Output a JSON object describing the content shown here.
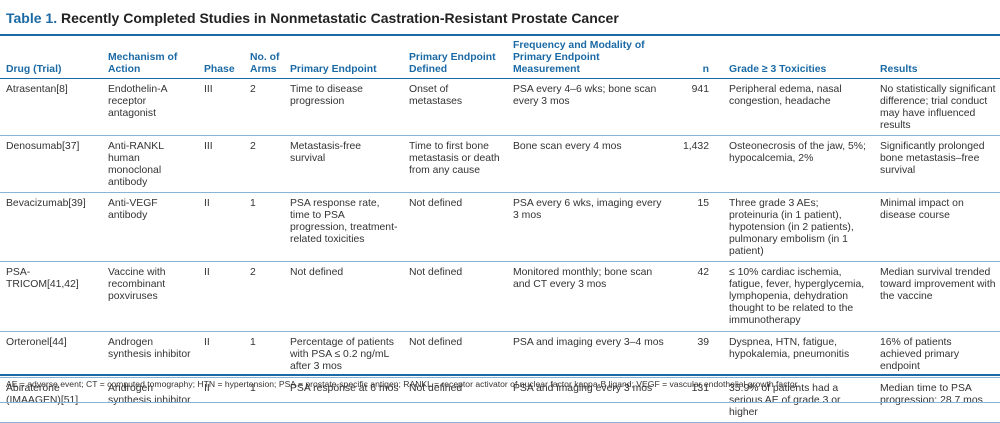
{
  "title": {
    "number": "Table 1.",
    "text": "Recently Completed Studies in Nonmetastatic Castration-Resistant Prostate Cancer"
  },
  "columns": [
    "Drug (Trial)",
    "Mechanism of Action",
    "Phase",
    "No. of Arms",
    "Primary Endpoint",
    "Primary Endpoint Defined",
    "Frequency and Modality of Primary Endpoint Measurement",
    "n",
    "Grade ≥ 3 Toxicities",
    "Results"
  ],
  "rows": [
    [
      "Atrasentan[8]",
      "Endothelin-A receptor antagonist",
      "III",
      "2",
      "Time to disease progression",
      "Onset of metastases",
      "PSA every 4–6 wks; bone scan every 3 mos",
      "941",
      "Peripheral edema, nasal congestion, headache",
      "No statistically significant difference; trial conduct may have influenced results"
    ],
    [
      "Denosumab[37]",
      "Anti-RANKL human monoclonal antibody",
      "III",
      "2",
      "Metastasis-free survival",
      "Time to first bone metastasis or death from any cause",
      "Bone scan every 4 mos",
      "1,432",
      "Osteonecrosis of the jaw, 5%; hypocalcemia, 2%",
      "Significantly prolonged bone metastasis–free survival"
    ],
    [
      "Bevacizumab[39]",
      "Anti-VEGF antibody",
      "II",
      "1",
      "PSA response rate, time to PSA progression, treatment-related toxicities",
      "Not defined",
      "PSA every 6 wks, imaging every 3 mos",
      "15",
      "Three grade 3 AEs; proteinuria (in 1 patient), hypotension (in 2 patients), pulmonary embolism (in 1 patient)",
      "Minimal impact on disease course"
    ],
    [
      "PSA-TRICOM[41,42]",
      "Vaccine with recombinant poxviruses",
      "II",
      "2",
      "Not defined",
      "Not defined",
      "Monitored monthly; bone scan and CT every 3 mos",
      "42",
      "≤ 10% cardiac ischemia, fatigue, fever, hyperglycemia, lymphopenia, dehydration thought to be related to the immunotherapy",
      "Median survival trended toward improvement with the vaccine"
    ],
    [
      "Orteronel[44]",
      "Androgen synthesis inhibitor",
      "II",
      "1",
      "Percentage of patients with PSA ≤ 0.2 ng/mL after 3 mos",
      "Not defined",
      "PSA and imaging every 3–4 mos",
      "39",
      "Dyspnea, HTN, fatigue, hypokalemia, pneumonitis",
      "16% of patients achieved primary endpoint"
    ],
    [
      "Abiraterone (IMAAGEN)[51]",
      "Androgen synthesis inhibitor",
      "II",
      "1",
      "PSA response at 6 mos",
      "Not defined",
      "PSA and imaging every 3 mos",
      "131",
      "35.9% of patients had a serious AE of grade 3 or higher",
      "Median time to PSA progression: 28.7 mos"
    ]
  ],
  "footnote": "AE = adverse event; CT = computed tomography; HTN = hypertension; PSA = prostate-specific antigen; RANKL = receptor activator of nuclear factor kappa-B ligand; VEGF = vascular endothelial growth factor.",
  "colors": {
    "accent": "#1b6aa5",
    "rule": "#8bb3d3",
    "text": "#333333"
  }
}
